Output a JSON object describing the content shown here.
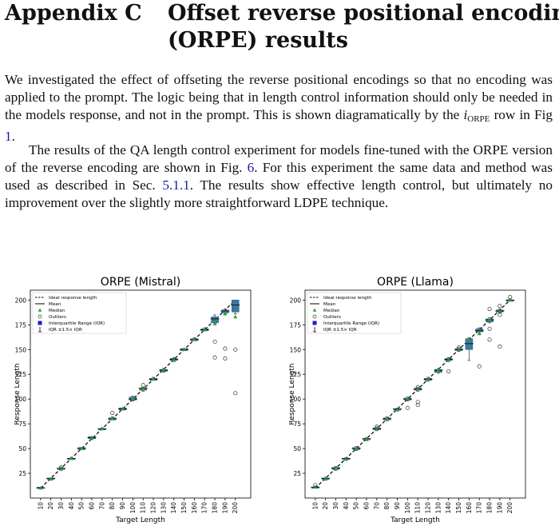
{
  "section": {
    "number": "Appendix C",
    "title_line1": "Offset reverse positional encoding",
    "title_line2": "(ORPE) results"
  },
  "paragraph1": {
    "text1": "We investigated the effect of offseting the reverse positional encodings so that no encoding was applied to the prompt. The logic being that in length control information should only be needed in the models response, and not in the prompt. This is shown diagramatically by the ",
    "var_i": "i",
    "var_sub": "ORPE",
    "text2": " row in Fig ",
    "ref_fig1": "1",
    "text3": "."
  },
  "paragraph2": {
    "text1": "The results of the QA length control experiment for models fine-tuned with the ORPE version of the reverse encoding are shown in Fig. ",
    "ref_fig6": "6",
    "text2": ". For this experiment the same data and method was used as described in Sec. ",
    "ref_sec": "5.1.1",
    "text3": ". The results show effective length control, but ultimately no improvement over the slightly more straightforward LDPE technique."
  },
  "chart_data": [
    {
      "type": "box",
      "title": "ORPE (Mistral)",
      "xlabel": "Target Length",
      "ylabel": "Response Length",
      "categories": [
        10,
        20,
        30,
        40,
        50,
        60,
        70,
        80,
        90,
        100,
        110,
        120,
        130,
        140,
        150,
        160,
        170,
        180,
        190,
        200
      ],
      "yticks": [
        25,
        50,
        75,
        100,
        125,
        150,
        175,
        200
      ],
      "ylim": [
        0,
        210
      ],
      "legend": [
        "Ideal response length",
        "Mean",
        "Median",
        "Outliers",
        "Interquartile Range (IQR)",
        "IQR ±1.5× IQR"
      ],
      "legend_position": "top-left",
      "ideal": [
        10,
        20,
        30,
        40,
        50,
        60,
        70,
        80,
        90,
        100,
        110,
        120,
        130,
        140,
        150,
        160,
        170,
        180,
        190,
        200
      ],
      "median": [
        10,
        19,
        30,
        40,
        50,
        61,
        70,
        80,
        90,
        100,
        110,
        120,
        129,
        139,
        150,
        160,
        170,
        177,
        186,
        183
      ],
      "mean": [
        10,
        20,
        30,
        40,
        50,
        61,
        70,
        80,
        90,
        100,
        111,
        120,
        129,
        140,
        150,
        160,
        170,
        181,
        189,
        195
      ],
      "q1": [
        10,
        19,
        29,
        39,
        49,
        60,
        69,
        79,
        89,
        99,
        109,
        119,
        128,
        139,
        149,
        159,
        169,
        177,
        187,
        188
      ],
      "q3": [
        11,
        20,
        30,
        40,
        51,
        62,
        70,
        81,
        91,
        102,
        111,
        121,
        130,
        141,
        151,
        161,
        171,
        183,
        190,
        200
      ],
      "whisker_low": [
        10,
        19,
        28,
        39,
        49,
        59,
        69,
        79,
        89,
        98,
        108,
        119,
        127,
        138,
        149,
        159,
        169,
        175,
        186,
        186
      ],
      "whisker_high": [
        11,
        20,
        31,
        41,
        51,
        62,
        71,
        82,
        91,
        103,
        112,
        122,
        131,
        142,
        151,
        162,
        172,
        185,
        191,
        200
      ],
      "outliers": [
        [
          30,
          31
        ],
        [
          80,
          86
        ],
        [
          110,
          114
        ],
        [
          180,
          158
        ],
        [
          180,
          142
        ],
        [
          190,
          151
        ],
        [
          190,
          141
        ],
        [
          200,
          150
        ],
        [
          200,
          106
        ]
      ]
    },
    {
      "type": "box",
      "title": "ORPE (Llama)",
      "xlabel": "Target Length",
      "ylabel": "Response Length",
      "categories": [
        10,
        20,
        30,
        40,
        50,
        60,
        70,
        80,
        90,
        100,
        110,
        120,
        130,
        140,
        150,
        160,
        170,
        180,
        190,
        200
      ],
      "yticks": [
        25,
        50,
        75,
        100,
        125,
        150,
        175,
        200
      ],
      "ylim": [
        0,
        210
      ],
      "legend": [
        "Ideal response length",
        "Mean",
        "Median",
        "Outliers",
        "Interquartile Range (IQR)",
        "IQR ±1.5× IQR"
      ],
      "legend_position": "top-left",
      "ideal": [
        10,
        20,
        30,
        40,
        50,
        60,
        70,
        80,
        90,
        100,
        110,
        120,
        130,
        140,
        150,
        160,
        170,
        180,
        190,
        200
      ],
      "median": [
        11,
        19,
        30,
        39,
        50,
        59,
        70,
        80,
        89,
        100,
        110,
        120,
        129,
        139,
        150,
        160,
        166,
        180,
        188,
        200
      ],
      "mean": [
        11,
        20,
        30,
        40,
        50,
        60,
        70,
        80,
        90,
        100,
        110,
        120,
        129,
        140,
        150,
        156,
        169,
        180,
        189,
        200
      ],
      "q1": [
        10,
        19,
        29,
        39,
        49,
        59,
        69,
        79,
        89,
        99,
        109,
        119,
        127,
        139,
        149,
        150,
        168,
        178,
        188,
        199
      ],
      "q3": [
        11,
        20,
        31,
        40,
        51,
        60,
        71,
        81,
        90,
        101,
        111,
        121,
        130,
        141,
        151,
        161,
        171,
        181,
        190,
        200
      ],
      "whisker_low": [
        10,
        19,
        28,
        38,
        48,
        58,
        68,
        78,
        88,
        98,
        108,
        118,
        126,
        138,
        148,
        139,
        167,
        177,
        187,
        199
      ],
      "whisker_high": [
        12,
        21,
        32,
        41,
        52,
        61,
        72,
        82,
        91,
        102,
        112,
        122,
        131,
        142,
        152,
        162,
        172,
        182,
        191,
        201
      ],
      "outliers": [
        [
          10,
          13
        ],
        [
          70,
          72
        ],
        [
          100,
          91
        ],
        [
          110,
          97
        ],
        [
          110,
          94
        ],
        [
          110,
          112
        ],
        [
          140,
          128
        ],
        [
          150,
          152
        ],
        [
          170,
          133
        ],
        [
          180,
          191
        ],
        [
          180,
          171
        ],
        [
          180,
          160
        ],
        [
          190,
          153
        ],
        [
          190,
          185
        ],
        [
          190,
          194
        ],
        [
          200,
          203
        ]
      ]
    }
  ]
}
